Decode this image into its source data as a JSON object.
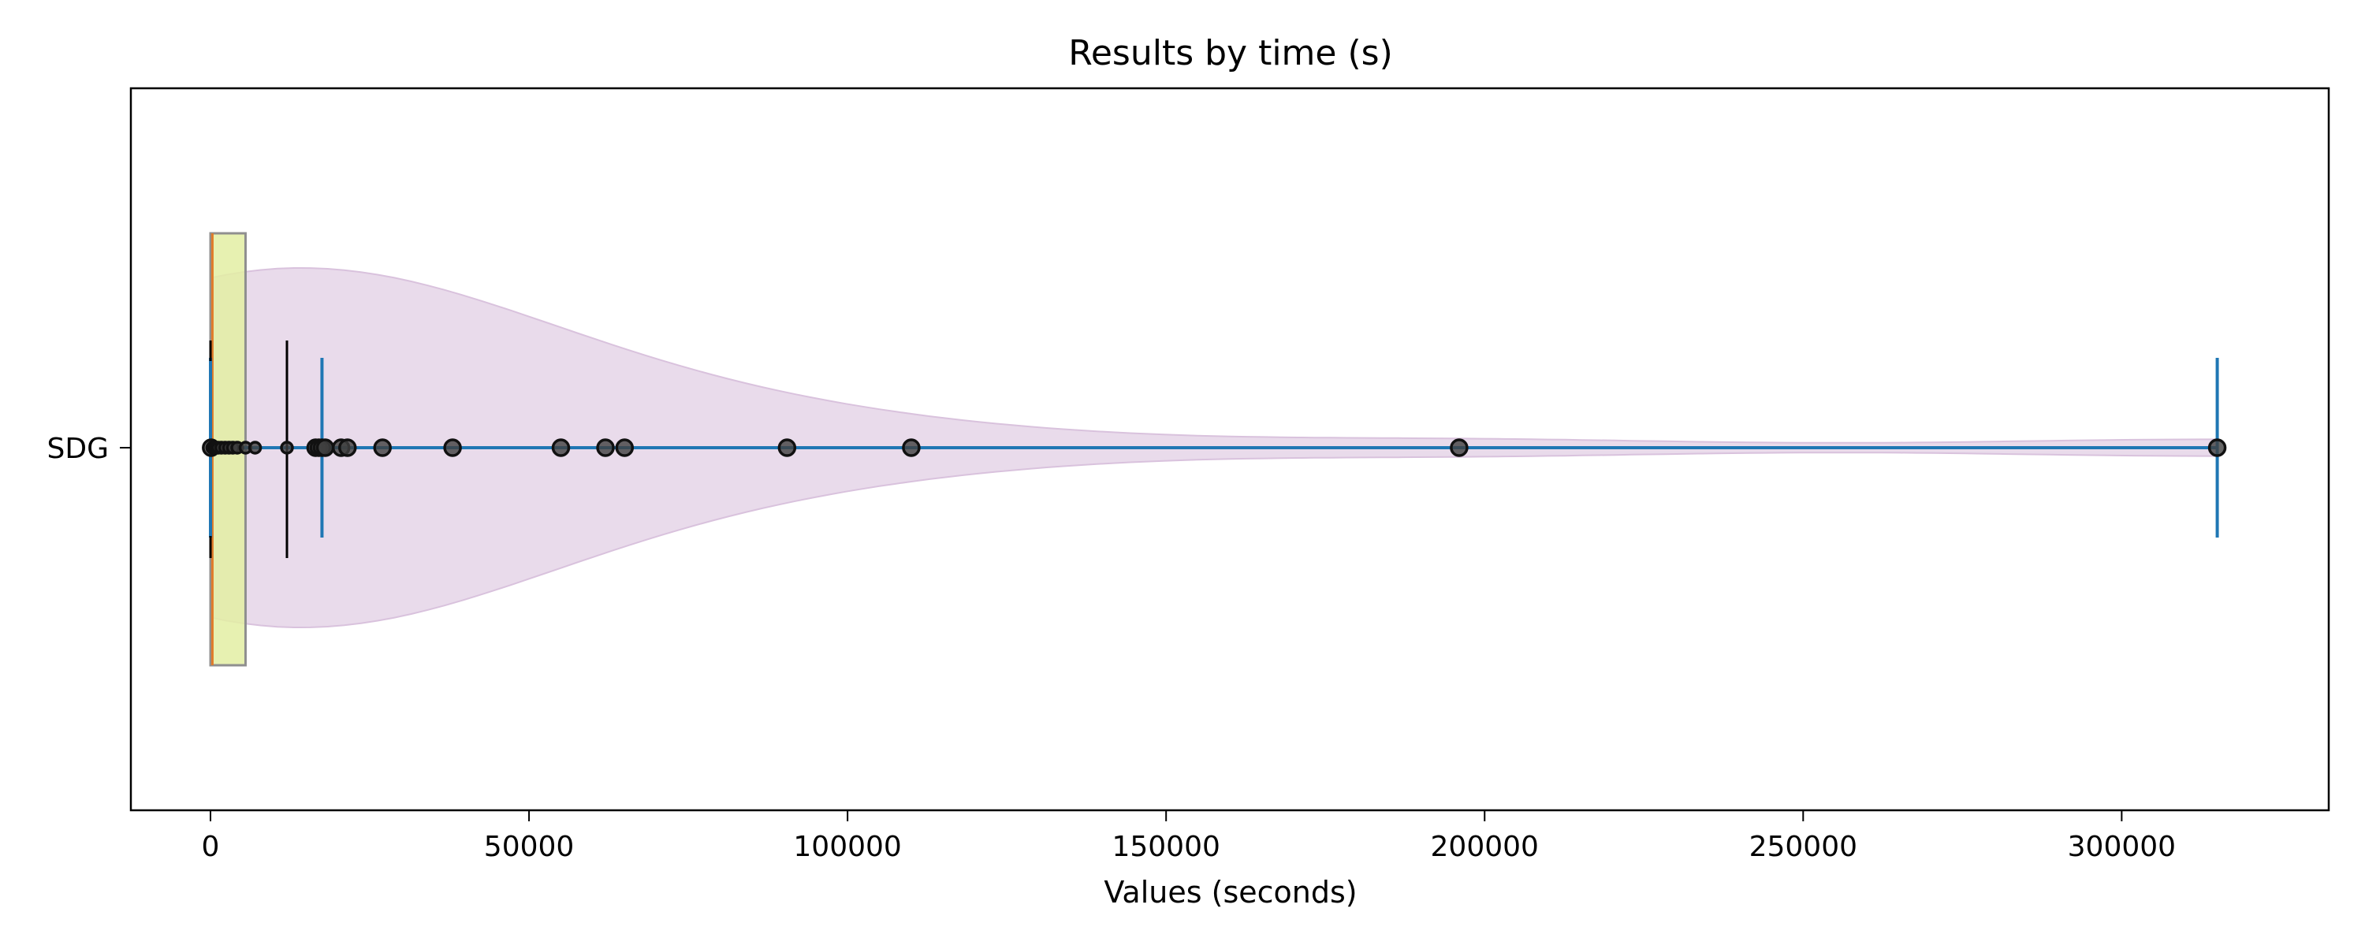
{
  "chart_data": {
    "type": "violin",
    "title": "Results by time (s)",
    "xlabel": "Values (seconds)",
    "ylabel": "",
    "categories": [
      "SDG"
    ],
    "xlim": [
      -12500,
      332500
    ],
    "xticks": [
      0,
      50000,
      100000,
      150000,
      200000,
      250000,
      300000
    ],
    "grid": false,
    "series": [
      {
        "name": "SDG",
        "points": [
          100,
          300,
          500,
          800,
          1200,
          1700,
          2300,
          2900,
          3500,
          4200,
          5500,
          7000,
          12000,
          16500,
          17000,
          17500,
          18000,
          20500,
          21500,
          27000,
          38000,
          55000,
          62000,
          65000,
          90500,
          110000,
          196000,
          315000
        ],
        "box": {
          "q1": 0,
          "median": 300,
          "q3": 5500
        },
        "mean": 12000,
        "std_whisker": [
          0,
          17500
        ],
        "range": [
          0,
          315000
        ]
      }
    ],
    "colors": {
      "violin": "#e5d5e8",
      "violin_edge": "#d9c2dd",
      "box_fill": "#e3eea3",
      "box_edge": "#8f8f8f",
      "median": "#e07b2a",
      "range": "#1f77b4",
      "points": "#404040",
      "mean_line": "#000000"
    }
  }
}
